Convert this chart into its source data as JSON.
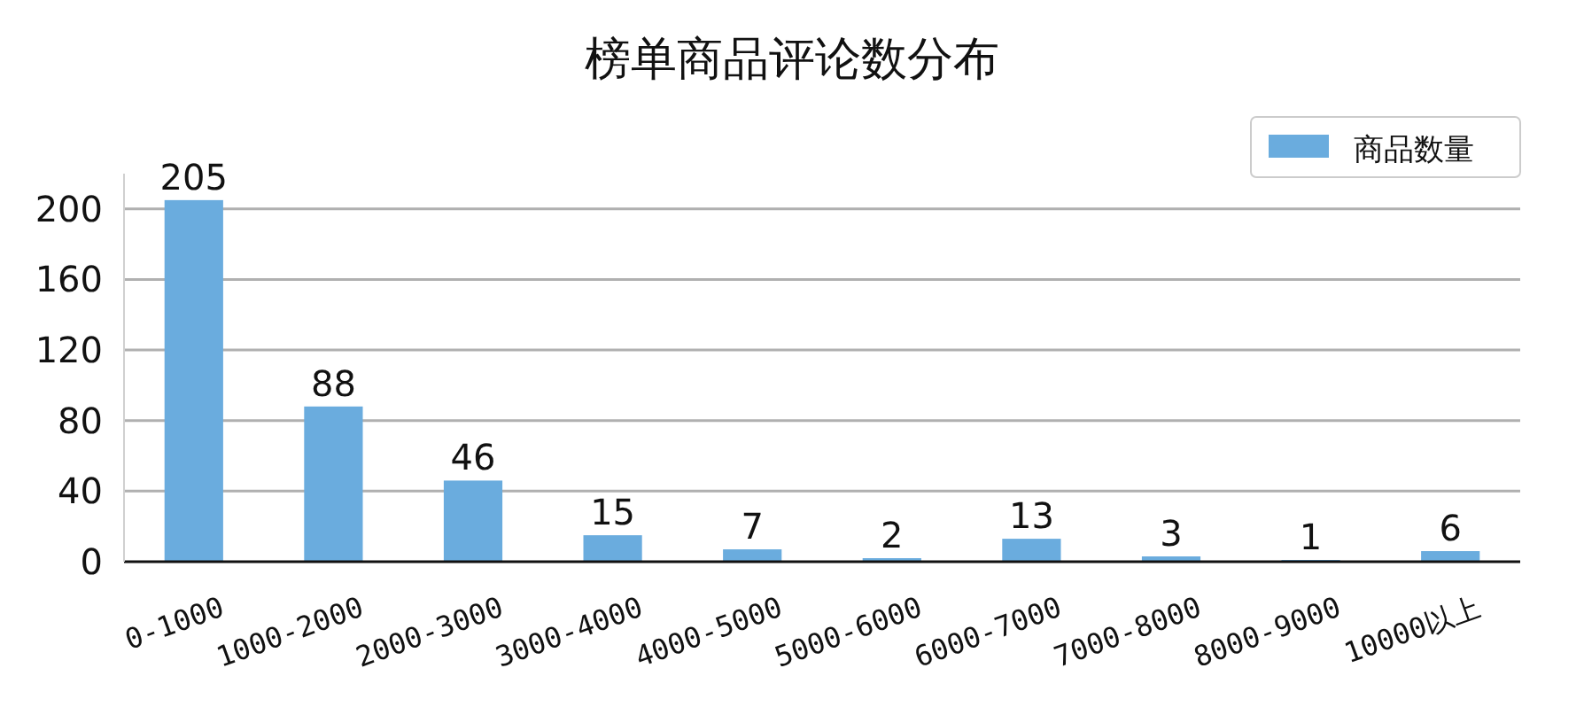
{
  "chart_data": {
    "type": "bar",
    "title": "榜单商品评论数分布",
    "categories": [
      "0-1000",
      "1000-2000",
      "2000-3000",
      "3000-4000",
      "4000-5000",
      "5000-6000",
      "6000-7000",
      "7000-8000",
      "8000-9000",
      "10000以上"
    ],
    "series": [
      {
        "name": "商品数量",
        "color": "#6aacde",
        "values": [
          205,
          88,
          46,
          15,
          7,
          2,
          13,
          3,
          1,
          6
        ]
      }
    ],
    "ylim": [
      0,
      220
    ],
    "yticks": [
      0,
      40,
      80,
      120,
      160,
      200
    ],
    "grid": "y",
    "legend": "top right",
    "data_labels": true
  }
}
